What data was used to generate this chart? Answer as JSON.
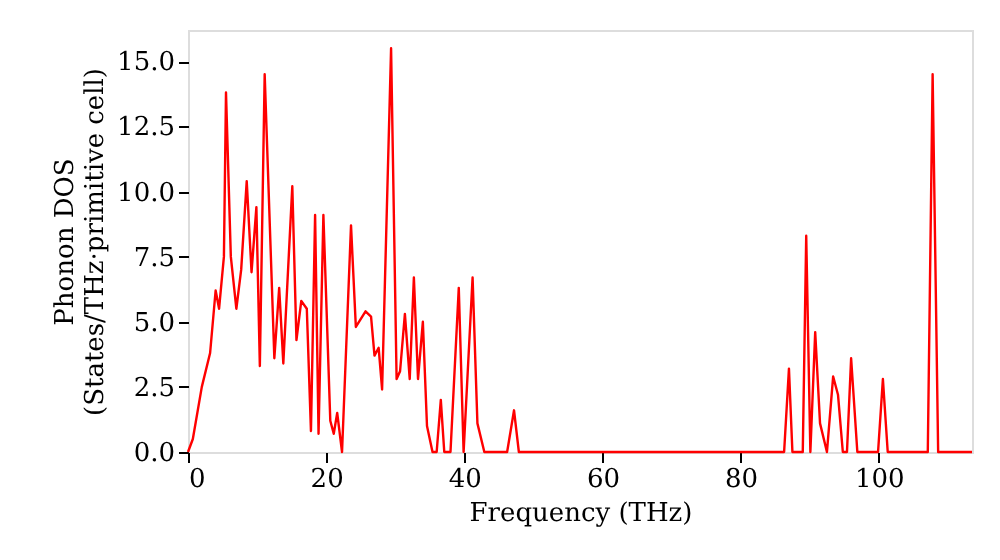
{
  "chart_data": {
    "type": "line",
    "xlabel": "Frequency (THz)",
    "ylabel": "Phonon DOS\n(States/THz·primitive cell)",
    "xlim": [
      0,
      113.5
    ],
    "xticks": [
      0,
      20,
      40,
      60,
      80,
      100
    ],
    "ylim": [
      0,
      16.2
    ],
    "yticks": [
      {
        "value": 0,
        "label": "0.0"
      },
      {
        "value": 2.5,
        "label": "2.5"
      },
      {
        "value": 5,
        "label": "5.0"
      },
      {
        "value": 7.5,
        "label": "7.5"
      },
      {
        "value": 10,
        "label": "10.0"
      },
      {
        "value": 12.5,
        "label": "12.5"
      },
      {
        "value": 15,
        "label": "15.0"
      }
    ],
    "grid": false,
    "line_style": "solid",
    "marker": "none",
    "x": [
      0,
      0.7,
      2,
      3.2,
      4.0,
      4.5,
      5.2,
      5.5,
      6.2,
      7,
      7.7,
      8.5,
      9.2,
      9.9,
      10.4,
      11.1,
      12.5,
      13.2,
      13.8,
      15.1,
      15.7,
      16.4,
      17.2,
      17.8,
      18.4,
      18.9,
      19.6,
      20.6,
      21.1,
      21.6,
      22.3,
      23.6,
      24.3,
      25.7,
      26.5,
      27,
      27.6,
      28.1,
      29.4,
      30.2,
      30.7,
      31.4,
      32.1,
      32.7,
      33.3,
      34,
      34.6,
      35.4,
      36,
      36.6,
      37.1,
      38,
      39.2,
      39.9,
      41.2,
      41.9,
      42.9,
      46.2,
      47.2,
      47.9,
      86.3,
      87,
      87.5,
      89,
      89.5,
      90.1,
      90.8,
      91.5,
      92.5,
      93.4,
      94.1,
      94.8,
      95.4,
      96,
      96.9,
      99.9,
      100.6,
      101.3,
      107.1,
      107.8,
      108.6,
      113.5
    ],
    "series": [
      {
        "color": "#ff0000",
        "values": [
          0,
          0.5,
          2.5,
          3.8,
          6.2,
          5.5,
          7.5,
          13.8,
          7.5,
          5.5,
          7.0,
          10.4,
          6.9,
          9.4,
          3.3,
          14.5,
          3.6,
          6.3,
          3.4,
          10.2,
          4.3,
          5.8,
          5.5,
          0.8,
          9.1,
          0.7,
          9.1,
          1.2,
          0.7,
          1.5,
          0,
          8.7,
          4.8,
          5.4,
          5.2,
          3.7,
          4.0,
          2.4,
          15.5,
          2.8,
          3.1,
          5.3,
          2.8,
          6.7,
          2.8,
          5.0,
          1.0,
          0,
          0,
          2.0,
          0,
          0,
          6.3,
          0,
          6.7,
          1.1,
          0,
          0,
          1.6,
          0,
          0,
          3.2,
          0,
          0,
          8.3,
          0,
          4.6,
          1.1,
          0,
          2.9,
          2.2,
          0,
          0,
          3.6,
          0,
          0,
          2.8,
          0,
          0,
          14.5,
          0,
          0
        ]
      }
    ]
  }
}
